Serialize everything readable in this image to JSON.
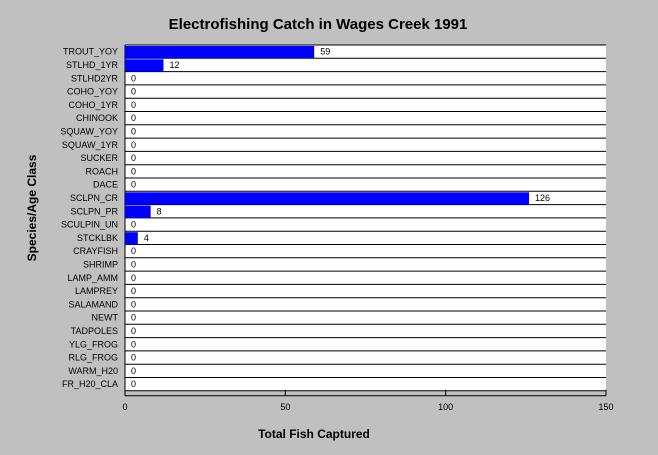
{
  "chart_data": {
    "type": "bar",
    "orientation": "horizontal",
    "title": "Electrofishing Catch in Wages Creek 1991",
    "xlabel": "Total Fish Captured",
    "ylabel": "Species/Age Class",
    "xlim": [
      0,
      150
    ],
    "xticks": [
      0,
      50,
      100,
      150
    ],
    "grid": "horizontal row lines",
    "bar_color": "#0000ff",
    "background_color": "#c0c0c0",
    "plot_color": "#ffffff",
    "categories": [
      "TROUT_YOY",
      "STLHD_1YR",
      "STLHD2YR",
      "COHO_YOY",
      "COHO_1YR",
      "CHINOOK",
      "SQUAW_YOY",
      "SQUAW_1YR",
      "SUCKER",
      "ROACH",
      "DACE",
      "SCLPN_CR",
      "SCLPN_PR",
      "SCULPIN_UN",
      "STCKLBK",
      "CRAYFISH",
      "SHRIMP",
      "LAMP_AMM",
      "LAMPREY",
      "SALAMAND",
      "NEWT",
      "TADPOLES",
      "YLG_FROG",
      "RLG_FROG",
      "WARM_H20",
      "FR_H20_CLA"
    ],
    "values": [
      59,
      12,
      0,
      0,
      0,
      0,
      0,
      0,
      0,
      0,
      0,
      126,
      8,
      0,
      4,
      0,
      0,
      0,
      0,
      0,
      0,
      0,
      0,
      0,
      0,
      0
    ]
  }
}
